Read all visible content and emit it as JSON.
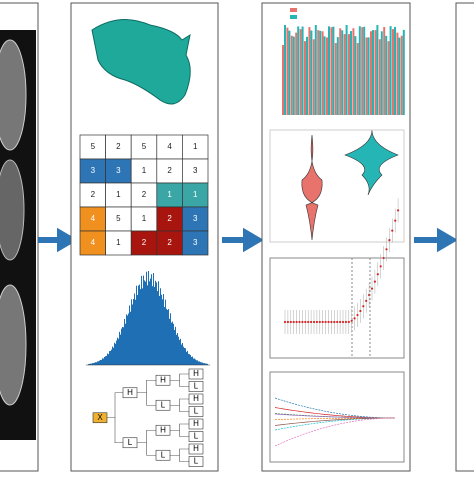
{
  "grid": {
    "rows": [
      [
        5,
        2,
        5,
        4,
        1
      ],
      [
        3,
        3,
        1,
        2,
        3
      ],
      [
        2,
        1,
        2,
        1,
        1
      ],
      [
        4,
        5,
        1,
        2,
        3
      ],
      [
        4,
        1,
        2,
        2,
        3
      ]
    ]
  },
  "tree": {
    "root": "X",
    "level1": [
      "H",
      "L"
    ],
    "level2": [
      "H",
      "L",
      "H",
      "L"
    ],
    "level3": [
      "H",
      "L",
      "H",
      "L",
      "H",
      "L",
      "H",
      "L"
    ]
  }
}
